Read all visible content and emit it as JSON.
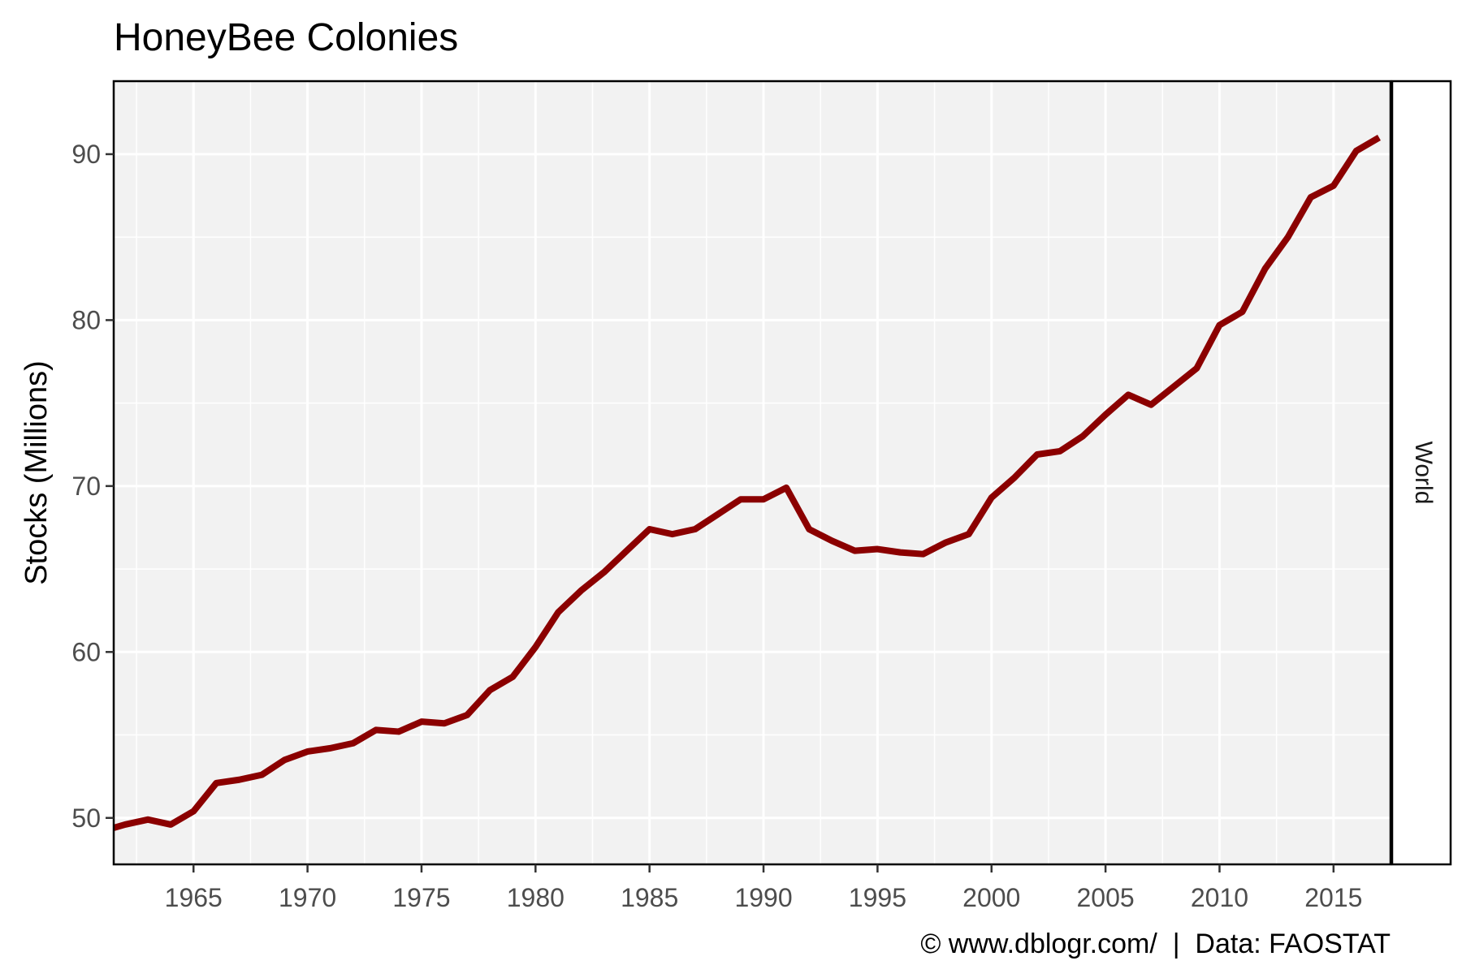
{
  "chart_data": {
    "type": "line",
    "title": "HoneyBee Colonies",
    "xlabel": "",
    "ylabel": "Stocks (Millions)",
    "facet_label": "World",
    "caption": "© www.dblogr.com/  |  Data: FAOSTAT",
    "xlim": [
      1961.5,
      2017.5
    ],
    "ylim": [
      47.2,
      94.4
    ],
    "x_ticks": [
      1965,
      1970,
      1975,
      1980,
      1985,
      1990,
      1995,
      2000,
      2005,
      2010,
      2015
    ],
    "y_ticks": [
      50,
      60,
      70,
      80,
      90
    ],
    "grid": true,
    "line_color": "#8b0000",
    "panel_color": "#f2f2f2",
    "series": [
      {
        "x": [
          1961,
          1962,
          1963,
          1964,
          1965,
          1966,
          1967,
          1968,
          1969,
          1970,
          1971,
          1972,
          1973,
          1974,
          1975,
          1976,
          1977,
          1978,
          1979,
          1980,
          1981,
          1982,
          1983,
          1984,
          1985,
          1986,
          1987,
          1988,
          1989,
          1990,
          1991,
          1992,
          1993,
          1994,
          1995,
          1996,
          1997,
          1998,
          1999,
          2000,
          2001,
          2002,
          2003,
          2004,
          2005,
          2006,
          2007,
          2008,
          2009,
          2010,
          2011,
          2012,
          2013,
          2014,
          2015,
          2016,
          2017
        ],
        "values": [
          49.2,
          49.6,
          49.9,
          49.6,
          50.4,
          52.1,
          52.3,
          52.6,
          53.5,
          54.0,
          54.2,
          54.5,
          55.3,
          55.2,
          55.8,
          55.7,
          56.2,
          57.7,
          58.5,
          60.3,
          62.4,
          63.7,
          64.8,
          66.1,
          67.4,
          67.1,
          67.4,
          68.3,
          69.2,
          69.2,
          69.9,
          67.4,
          66.7,
          66.1,
          66.2,
          66.0,
          65.9,
          66.6,
          67.1,
          69.3,
          70.5,
          71.9,
          72.1,
          73.0,
          74.3,
          75.5,
          74.9,
          76.0,
          77.1,
          79.7,
          80.5,
          83.1,
          85.0,
          87.4,
          88.1,
          90.2,
          91.0
        ]
      }
    ]
  }
}
